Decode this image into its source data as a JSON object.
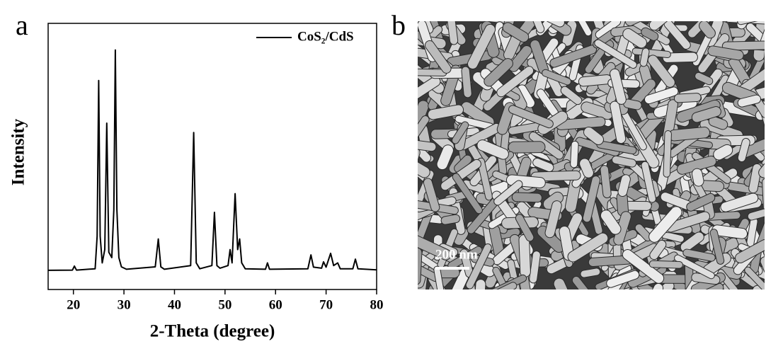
{
  "panel_labels": [
    "a",
    "b"
  ],
  "chart_data": {
    "type": "line",
    "xlabel": "2-Theta (degree)",
    "ylabel": "Intensity",
    "xlim": [
      15,
      80
    ],
    "xticks": [
      20,
      30,
      40,
      50,
      60,
      70,
      80
    ],
    "ylim": [
      0,
      100
    ],
    "legend": "upper right",
    "x": [
      15,
      19.8,
      20.2,
      20.6,
      24.3,
      24.7,
      25.0,
      25.3,
      25.7,
      26.2,
      26.6,
      27.0,
      27.6,
      28.0,
      28.3,
      28.6,
      29.0,
      29.5,
      30.5,
      36.2,
      36.8,
      37.3,
      38,
      43.2,
      43.8,
      44.3,
      45,
      47.4,
      47.9,
      48.4,
      49,
      50.6,
      51.0,
      51.4,
      52.0,
      52.5,
      52.9,
      53.3,
      54,
      58,
      58.4,
      58.8,
      66.4,
      67,
      67.5,
      69.1,
      69.5,
      70.0,
      70.9,
      71.5,
      72.3,
      72.8,
      75.3,
      75.8,
      76.3,
      80
    ],
    "series": [
      {
        "name": "CoS₂/CdS",
        "color": "#000000",
        "values": [
          7.2,
          7.3,
          8.8,
          7.3,
          7.8,
          20,
          78.5,
          20,
          10,
          15,
          62.5,
          14,
          12,
          30,
          90,
          30,
          12,
          8.5,
          7.6,
          8.5,
          19,
          8.5,
          7.6,
          9,
          59,
          10,
          7.8,
          9,
          29,
          9,
          8,
          9,
          15,
          10,
          36,
          15,
          19,
          10,
          7.8,
          7.6,
          10,
          7.6,
          7.8,
          13,
          8.4,
          8,
          10.4,
          8.4,
          13.6,
          9,
          10,
          7.8,
          7.8,
          11.4,
          7.8,
          7.4
        ]
      }
    ]
  },
  "image": {
    "scale_bar": "200 nm"
  }
}
